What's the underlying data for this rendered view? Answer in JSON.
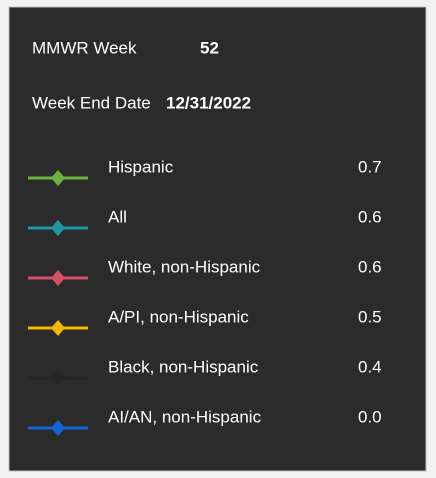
{
  "header": {
    "week_label": "MMWR Week",
    "week_value": "52",
    "date_label": "Week End Date",
    "date_value": "12/31/2022"
  },
  "rows": [
    {
      "name": "Hispanic",
      "value": "0.7",
      "color": "#6cb33e"
    },
    {
      "name": "All",
      "value": "0.6",
      "color": "#1f98a3"
    },
    {
      "name": "White, non-Hispanic",
      "value": "0.6",
      "color": "#d6506a"
    },
    {
      "name": "A/PI, non-Hispanic",
      "value": "0.5",
      "color": "#f2b705"
    },
    {
      "name": "Black, non-Hispanic",
      "value": "0.4",
      "color": "#262626"
    },
    {
      "name": "AI/AN, non-Hispanic",
      "value": "0.0",
      "color": "#1466d4"
    }
  ]
}
